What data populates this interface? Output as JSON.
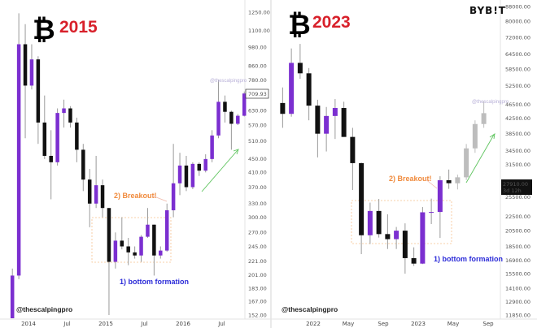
{
  "colors": {
    "up": "#7b2fd0",
    "down": "#111111",
    "projection": "#bdbdbd",
    "year": "#d8202a",
    "annotation_orange": "#f08a3c",
    "annotation_blue": "#2b2bd8",
    "trend_arrow": "#5fc45f"
  },
  "brand": {
    "logo_text": "BYB!T"
  },
  "chart_data": [
    {
      "type": "candlestick",
      "title": "2015",
      "icon": "bitcoin-icon",
      "y_scale": "log",
      "ylim": [
        152,
        1250
      ],
      "y_ticks": [
        "1250.00",
        "1100.00",
        "980.00",
        "860.00",
        "780.00",
        "630.00",
        "570.00",
        "510.00",
        "450.00",
        "410.00",
        "370.00",
        "330.00",
        "300.00",
        "270.00",
        "245.00",
        "221.00",
        "201.00",
        "183.00",
        "167.00",
        "152.00"
      ],
      "last_price": "709.93",
      "x_ticks": [
        "2014",
        "Jul",
        "2015",
        "Jul",
        "2016",
        "Jul"
      ],
      "watermark": "@thescalpingpro",
      "handle": "@thescalpingpro",
      "annotations": {
        "breakout": "2) Breakout!",
        "bottom": "1) bottom formation"
      },
      "candles": [
        {
          "date": "2013-10",
          "o": 130,
          "h": 210,
          "l": 120,
          "c": 200
        },
        {
          "date": "2013-11",
          "o": 200,
          "h": 1240,
          "l": 195,
          "c": 1000
        },
        {
          "date": "2013-12",
          "o": 1000,
          "h": 1150,
          "l": 520,
          "c": 750
        },
        {
          "date": "2014-01",
          "o": 750,
          "h": 1000,
          "l": 730,
          "c": 900
        },
        {
          "date": "2014-02",
          "o": 900,
          "h": 920,
          "l": 500,
          "c": 580
        },
        {
          "date": "2014-03",
          "o": 580,
          "h": 700,
          "l": 450,
          "c": 460
        },
        {
          "date": "2014-04",
          "o": 460,
          "h": 550,
          "l": 340,
          "c": 440
        },
        {
          "date": "2014-05",
          "o": 440,
          "h": 640,
          "l": 430,
          "c": 620
        },
        {
          "date": "2014-06",
          "o": 620,
          "h": 680,
          "l": 560,
          "c": 640
        },
        {
          "date": "2014-07",
          "o": 640,
          "h": 650,
          "l": 560,
          "c": 580
        },
        {
          "date": "2014-08",
          "o": 580,
          "h": 600,
          "l": 440,
          "c": 480
        },
        {
          "date": "2014-09",
          "o": 480,
          "h": 500,
          "l": 360,
          "c": 390
        },
        {
          "date": "2014-10",
          "o": 390,
          "h": 420,
          "l": 280,
          "c": 330
        },
        {
          "date": "2014-11",
          "o": 330,
          "h": 460,
          "l": 320,
          "c": 375
        },
        {
          "date": "2014-12",
          "o": 375,
          "h": 390,
          "l": 300,
          "c": 320
        },
        {
          "date": "2015-01",
          "o": 320,
          "h": 320,
          "l": 152,
          "c": 220
        },
        {
          "date": "2015-02",
          "o": 220,
          "h": 270,
          "l": 210,
          "c": 255
        },
        {
          "date": "2015-03",
          "o": 255,
          "h": 300,
          "l": 240,
          "c": 245
        },
        {
          "date": "2015-04",
          "o": 245,
          "h": 260,
          "l": 215,
          "c": 235
        },
        {
          "date": "2015-05",
          "o": 235,
          "h": 245,
          "l": 225,
          "c": 230
        },
        {
          "date": "2015-06",
          "o": 230,
          "h": 265,
          "l": 220,
          "c": 262
        },
        {
          "date": "2015-07",
          "o": 262,
          "h": 320,
          "l": 260,
          "c": 285
        },
        {
          "date": "2015-08",
          "o": 285,
          "h": 285,
          "l": 200,
          "c": 230
        },
        {
          "date": "2015-09",
          "o": 230,
          "h": 245,
          "l": 225,
          "c": 238
        },
        {
          "date": "2015-10",
          "o": 238,
          "h": 330,
          "l": 236,
          "c": 315
        },
        {
          "date": "2015-11",
          "o": 315,
          "h": 500,
          "l": 300,
          "c": 380
        },
        {
          "date": "2015-12",
          "o": 380,
          "h": 470,
          "l": 350,
          "c": 430
        },
        {
          "date": "2016-01",
          "o": 430,
          "h": 460,
          "l": 360,
          "c": 370
        },
        {
          "date": "2016-02",
          "o": 370,
          "h": 440,
          "l": 365,
          "c": 435
        },
        {
          "date": "2016-03",
          "o": 435,
          "h": 440,
          "l": 400,
          "c": 415
        },
        {
          "date": "2016-04",
          "o": 415,
          "h": 465,
          "l": 410,
          "c": 450
        },
        {
          "date": "2016-05",
          "o": 450,
          "h": 550,
          "l": 440,
          "c": 530
        },
        {
          "date": "2016-06",
          "o": 530,
          "h": 780,
          "l": 520,
          "c": 670
        },
        {
          "date": "2016-07",
          "o": 670,
          "h": 700,
          "l": 580,
          "c": 625
        },
        {
          "date": "2016-08",
          "o": 625,
          "h": 630,
          "l": 480,
          "c": 575
        },
        {
          "date": "2016-09",
          "o": 575,
          "h": 615,
          "l": 570,
          "c": 608
        },
        {
          "date": "2016-10",
          "o": 608,
          "h": 720,
          "l": 605,
          "c": 709.93
        }
      ]
    },
    {
      "type": "candlestick",
      "title": "2023",
      "icon": "bitcoin-icon",
      "y_scale": "log",
      "ylim": [
        11850,
        88000
      ],
      "y_ticks": [
        "88000.00",
        "80000.00",
        "72000.00",
        "64500.00",
        "58500.00",
        "52500.00",
        "46500.00",
        "42500.00",
        "38500.00",
        "34500.00",
        "31500.00",
        "25500.00",
        "22500.00",
        "20500.00",
        "18500.00",
        "16900.00",
        "15500.00",
        "14100.00",
        "12900.00",
        "11850.00"
      ],
      "last_price": "27910.00",
      "countdown": "3d 12h",
      "x_ticks": [
        "2022",
        "May",
        "Sep",
        "2023",
        "May",
        "Sep"
      ],
      "watermark": "@thescalpingpro",
      "handle": "@thescalpingpro",
      "annotations": {
        "breakout": "2) Breakout!",
        "bottom": "1) bottom formation"
      },
      "candles": [
        {
          "date": "2021-09",
          "o": 47000,
          "h": 52000,
          "l": 40000,
          "c": 43800
        },
        {
          "date": "2021-10",
          "o": 43800,
          "h": 67000,
          "l": 43000,
          "c": 61000
        },
        {
          "date": "2021-11",
          "o": 61000,
          "h": 69000,
          "l": 55000,
          "c": 57000
        },
        {
          "date": "2021-12",
          "o": 57000,
          "h": 59000,
          "l": 42000,
          "c": 46200
        },
        {
          "date": "2022-01",
          "o": 46200,
          "h": 48000,
          "l": 33000,
          "c": 38500
        },
        {
          "date": "2022-02",
          "o": 38500,
          "h": 45800,
          "l": 34300,
          "c": 43200
        },
        {
          "date": "2022-03",
          "o": 43200,
          "h": 48200,
          "l": 37200,
          "c": 45500
        },
        {
          "date": "2022-04",
          "o": 45500,
          "h": 47400,
          "l": 37700,
          "c": 37700
        },
        {
          "date": "2022-05",
          "o": 37700,
          "h": 40000,
          "l": 26700,
          "c": 31800
        },
        {
          "date": "2022-06",
          "o": 31800,
          "h": 31900,
          "l": 17600,
          "c": 19900
        },
        {
          "date": "2022-07",
          "o": 19900,
          "h": 24600,
          "l": 18800,
          "c": 23300
        },
        {
          "date": "2022-08",
          "o": 23300,
          "h": 25200,
          "l": 19600,
          "c": 20050
        },
        {
          "date": "2022-09",
          "o": 20050,
          "h": 22800,
          "l": 18200,
          "c": 19400
        },
        {
          "date": "2022-10",
          "o": 19400,
          "h": 21000,
          "l": 18200,
          "c": 20500
        },
        {
          "date": "2022-11",
          "o": 20500,
          "h": 21500,
          "l": 15500,
          "c": 17150
        },
        {
          "date": "2022-12",
          "o": 17150,
          "h": 18400,
          "l": 16300,
          "c": 16550
        },
        {
          "date": "2023-01",
          "o": 16550,
          "h": 23900,
          "l": 16500,
          "c": 23100
        },
        {
          "date": "2023-02",
          "o": 23100,
          "h": 25250,
          "l": 21400,
          "c": 23150
        },
        {
          "date": "2023-03",
          "o": 23150,
          "h": 29200,
          "l": 19550,
          "c": 28450
        },
        {
          "date": "2023-04",
          "o": 28450,
          "h": 30500,
          "l": 26900,
          "c": 27910
        }
      ],
      "projection_candles": [
        {
          "date": "2023-05",
          "o": 27900,
          "h": 29500,
          "l": 26800,
          "c": 29000
        },
        {
          "date": "2023-06",
          "o": 29000,
          "h": 36000,
          "l": 28500,
          "c": 35000
        },
        {
          "date": "2023-07",
          "o": 35000,
          "h": 42000,
          "l": 34000,
          "c": 41000
        },
        {
          "date": "2023-08",
          "o": 41000,
          "h": 47500,
          "l": 40000,
          "c": 44000
        }
      ]
    }
  ]
}
